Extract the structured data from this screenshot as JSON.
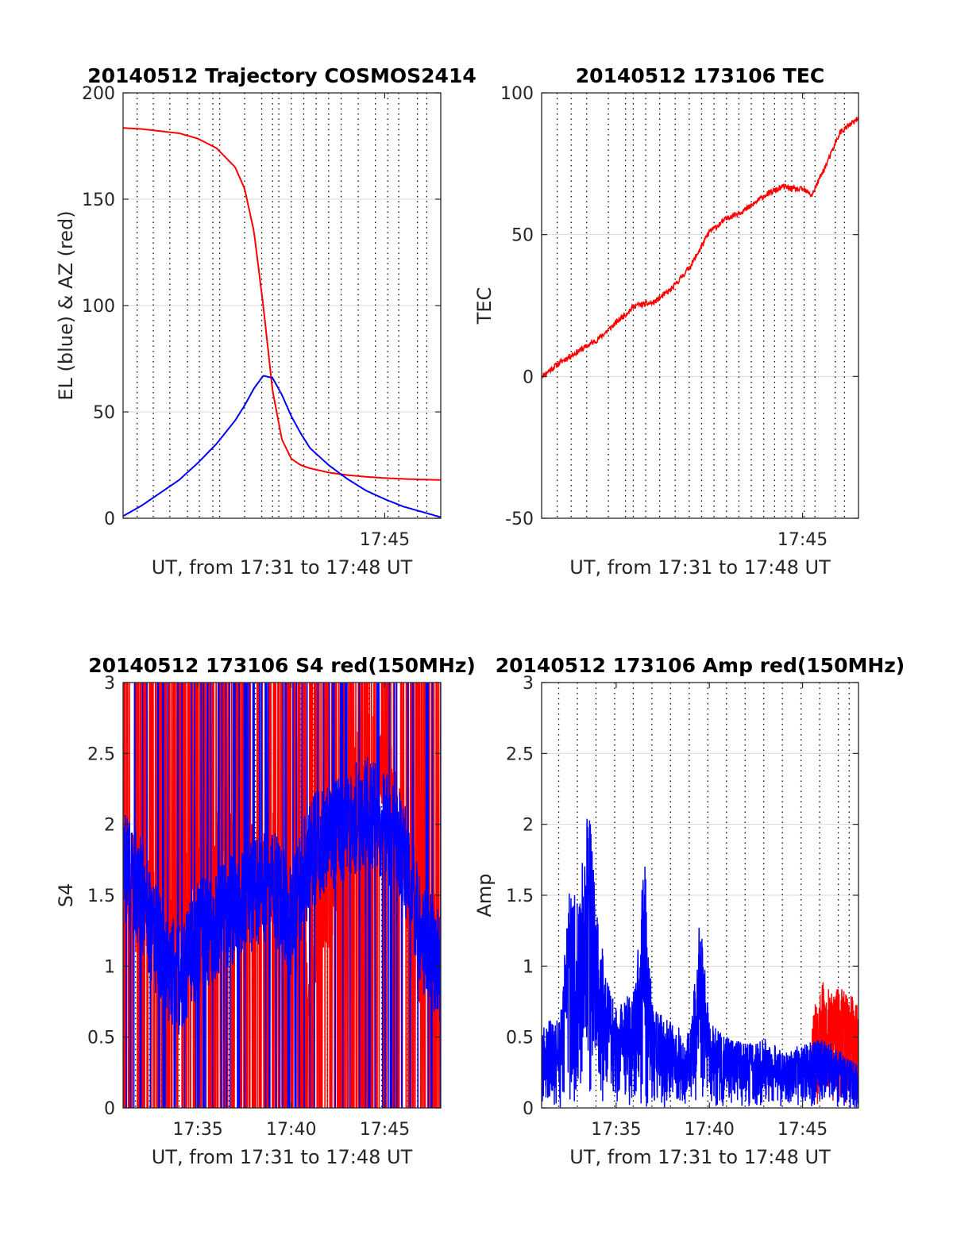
{
  "figure": {
    "colors": {
      "red": "#ff0000",
      "blue": "#0000ff",
      "axes": "#262626",
      "grid": "#d9d9d9",
      "vline": "#000000"
    }
  },
  "chart_data": [
    {
      "type": "line",
      "title": "20140512 Trajectory COSMOS2414",
      "xlabel": "UT, from 17:31 to 17:48 UT",
      "ylabel": "EL (blue) & AZ (red)",
      "xlim": [
        "17:31",
        "17:48"
      ],
      "ylim": [
        0,
        200
      ],
      "yticks": [
        "0",
        "50",
        "100",
        "150",
        "200"
      ],
      "xticklabels": [
        {
          "x": "17:45",
          "label": "17:45"
        }
      ],
      "grid": true,
      "vertical_markers": [
        "17:31:45",
        "17:32:37",
        "17:33:30",
        "17:34:27",
        "17:35:05",
        "17:35:48",
        "17:36:10",
        "17:37:30",
        "17:38:25",
        "17:39:00",
        "17:39:20",
        "17:40:00",
        "17:40:40",
        "17:41:20",
        "17:42:00",
        "17:42:40",
        "17:43:35",
        "17:44:30",
        "17:45:10",
        "17:45:45",
        "17:46:45",
        "17:47:15"
      ],
      "series": [
        {
          "color": "red",
          "x": [
            "17:31:00",
            "17:32:00",
            "17:33:00",
            "17:34:00",
            "17:35:00",
            "17:36:00",
            "17:37:00",
            "17:37:30",
            "17:38:00",
            "17:38:30",
            "17:39:00",
            "17:39:30",
            "17:40:00",
            "17:40:30",
            "17:41:00",
            "17:42:00",
            "17:43:00",
            "17:44:00",
            "17:45:00",
            "17:46:00",
            "17:47:00",
            "17:48:00"
          ],
          "values": [
            183.5,
            183,
            182,
            181,
            178.5,
            174,
            165,
            155,
            135,
            100,
            60,
            37,
            28,
            25,
            23.5,
            21.5,
            20.3,
            19.5,
            18.9,
            18.5,
            18.2,
            18
          ]
        },
        {
          "color": "blue",
          "x": [
            "17:31:00",
            "17:32:00",
            "17:33:00",
            "17:34:00",
            "17:35:00",
            "17:36:00",
            "17:37:00",
            "17:37:30",
            "17:38:00",
            "17:38:30",
            "17:39:00",
            "17:39:30",
            "17:40:00",
            "17:40:30",
            "17:41:00",
            "17:42:00",
            "17:43:00",
            "17:44:00",
            "17:45:00",
            "17:46:00",
            "17:47:00",
            "17:48:00"
          ],
          "values": [
            1,
            6,
            12,
            18,
            26,
            35,
            46,
            53,
            61,
            67,
            66,
            58,
            48,
            40,
            33,
            25,
            18.5,
            13,
            9,
            5.5,
            3,
            0.5
          ]
        }
      ]
    },
    {
      "type": "line",
      "title": "20140512 173106 TEC",
      "xlabel": "UT, from 17:31 to 17:48 UT",
      "ylabel": "TEC",
      "xlim": [
        "17:31",
        "17:48"
      ],
      "ylim": [
        -50,
        100
      ],
      "yticks": [
        "-50",
        "0",
        "50",
        "100"
      ],
      "xticklabels": [
        {
          "x": "17:45",
          "label": "17:45"
        }
      ],
      "grid": true,
      "vertical_markers": [
        "17:31:50",
        "17:32:35",
        "17:33:25",
        "17:34:35",
        "17:35:30",
        "17:35:55",
        "17:36:35",
        "17:37:20",
        "17:38:10",
        "17:38:55",
        "17:39:35",
        "17:40:15",
        "17:40:55",
        "17:41:35",
        "17:42:15",
        "17:42:55",
        "17:43:30",
        "17:44:05",
        "17:44:25",
        "17:45:05",
        "17:45:40",
        "17:46:45",
        "17:47:15"
      ],
      "series": [
        {
          "color": "red",
          "x": [
            "17:31:00",
            "17:32:00",
            "17:33:00",
            "17:34:00",
            "17:35:00",
            "17:36:00",
            "17:37:00",
            "17:38:00",
            "17:38:30",
            "17:39:00",
            "17:40:00",
            "17:41:00",
            "17:42:00",
            "17:43:00",
            "17:44:00",
            "17:44:30",
            "17:45:00",
            "17:45:30",
            "17:46:00",
            "17:46:30",
            "17:47:00",
            "17:48:00"
          ],
          "values": [
            0,
            5,
            9,
            13,
            19,
            25,
            26,
            31,
            35,
            39,
            51,
            56,
            59,
            64,
            67,
            66,
            66,
            64,
            71,
            78,
            86,
            91
          ]
        }
      ]
    },
    {
      "type": "line",
      "title": "20140512 173106 S4 red(150MHz)",
      "xlabel": "UT, from 17:31 to 17:48 UT",
      "ylabel": "S4",
      "xlim": [
        "17:31",
        "17:48"
      ],
      "ylim": [
        0,
        3
      ],
      "yticks": [
        "0",
        "0.5",
        "1",
        "1.5",
        "2",
        "2.5",
        "3"
      ],
      "xticklabels": [
        {
          "x": "17:35",
          "label": "17:35"
        },
        {
          "x": "17:40",
          "label": "17:40"
        },
        {
          "x": "17:45",
          "label": "17:45"
        }
      ],
      "grid": true,
      "vertical_markers": [
        "17:31:40",
        "17:32:25",
        "17:33:00",
        "17:34:00",
        "17:35:10",
        "17:35:50",
        "17:36:40",
        "17:37:20",
        "17:38:05",
        "17:38:40",
        "17:39:20",
        "17:39:55",
        "17:40:30",
        "17:41:10",
        "17:41:55",
        "17:42:40",
        "17:43:20",
        "17:44:10",
        "17:44:50",
        "17:45:30",
        "17:46:10",
        "17:46:45",
        "17:47:20"
      ],
      "series": [
        {
          "color": "red",
          "x": [
            "17:31:00",
            "17:32:00",
            "17:33:00",
            "17:34:00",
            "17:35:00",
            "17:36:00",
            "17:37:00",
            "17:38:00",
            "17:39:00",
            "17:40:00",
            "17:41:00",
            "17:42:00",
            "17:43:00",
            "17:44:00",
            "17:45:00",
            "17:46:00",
            "17:47:00",
            "17:48:00"
          ],
          "values": [
            1.7,
            1.4,
            1.5,
            1.3,
            1.6,
            1.7,
            1.8,
            1.6,
            1.7,
            1.3,
            1.0,
            1.5,
            2.0,
            2.5,
            2.4,
            1.8,
            1.0,
            1.3
          ]
        },
        {
          "color": "blue",
          "x": [
            "17:31:00",
            "17:32:00",
            "17:33:00",
            "17:34:00",
            "17:35:00",
            "17:36:00",
            "17:37:00",
            "17:38:00",
            "17:39:00",
            "17:40:00",
            "17:41:00",
            "17:42:00",
            "17:43:00",
            "17:44:00",
            "17:45:00",
            "17:46:00",
            "17:47:00",
            "17:48:00"
          ],
          "values": [
            1.7,
            1.5,
            1.1,
            0.9,
            1.2,
            1.3,
            1.4,
            1.5,
            1.6,
            1.3,
            1.8,
            1.9,
            2.0,
            2.1,
            2.0,
            1.8,
            1.2,
            1.0
          ]
        }
      ]
    },
    {
      "type": "line",
      "title": "20140512 173106 Amp red(150MHz)",
      "xlabel": "UT, from 17:31 to 17:48 UT",
      "ylabel": "Amp",
      "xlim": [
        "17:31",
        "17:48"
      ],
      "ylim": [
        0,
        3
      ],
      "yticks": [
        "0",
        "0.5",
        "1",
        "1.5",
        "2",
        "2.5",
        "3"
      ],
      "xticklabels": [
        {
          "x": "17:35",
          "label": "17:35"
        },
        {
          "x": "17:40",
          "label": "17:40"
        },
        {
          "x": "17:45",
          "label": "17:45"
        }
      ],
      "grid": true,
      "vertical_markers": [
        "17:31:55",
        "17:32:55",
        "17:33:55",
        "17:34:55",
        "17:35:55",
        "17:36:55",
        "17:37:55",
        "17:38:55",
        "17:39:55",
        "17:40:55",
        "17:41:55",
        "17:42:55",
        "17:43:55",
        "17:44:55",
        "17:45:55",
        "17:46:55",
        "17:47:30"
      ],
      "series": [
        {
          "color": "red",
          "x": [
            "17:45:30",
            "17:46:00",
            "17:46:30",
            "17:47:00",
            "17:47:30",
            "17:48:00"
          ],
          "values": [
            0.7,
            0.9,
            0.85,
            0.85,
            0.8,
            0.75
          ]
        },
        {
          "color": "blue",
          "x": [
            "17:31:00",
            "17:32:00",
            "17:32:30",
            "17:33:00",
            "17:33:30",
            "17:34:00",
            "17:34:30",
            "17:35:00",
            "17:36:00",
            "17:36:30",
            "17:37:00",
            "17:38:00",
            "17:39:00",
            "17:39:30",
            "17:40:00",
            "17:41:00",
            "17:42:00",
            "17:43:00",
            "17:44:00",
            "17:45:00",
            "17:46:00",
            "17:47:00",
            "17:48:00"
          ],
          "values": [
            0.6,
            0.65,
            1.6,
            1.5,
            2.2,
            1.4,
            0.9,
            0.7,
            0.85,
            1.8,
            0.7,
            0.6,
            0.55,
            1.4,
            0.6,
            0.5,
            0.45,
            0.5,
            0.4,
            0.45,
            0.5,
            0.4,
            0.3
          ]
        }
      ]
    }
  ]
}
